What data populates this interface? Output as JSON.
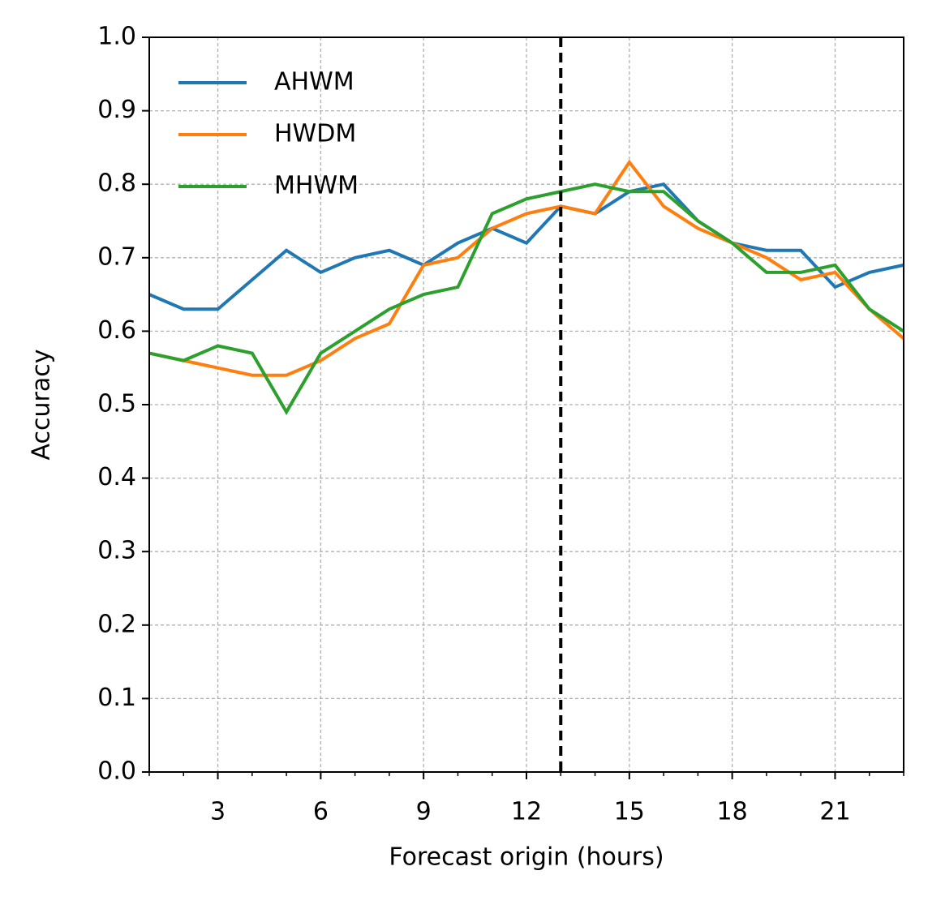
{
  "chart_data": {
    "type": "line",
    "x_label": "Forecast origin (hours)",
    "y_label": "Accuracy",
    "x": [
      1,
      2,
      3,
      4,
      5,
      6,
      7,
      8,
      9,
      10,
      11,
      12,
      13,
      14,
      15,
      16,
      17,
      18,
      19,
      20,
      21,
      22,
      23
    ],
    "series": [
      {
        "name": "AHWM",
        "color": "#1f77b4",
        "values": [
          0.65,
          0.63,
          0.63,
          0.67,
          0.71,
          0.68,
          0.7,
          0.71,
          0.69,
          0.72,
          0.74,
          0.72,
          0.77,
          0.76,
          0.79,
          0.8,
          0.75,
          0.72,
          0.71,
          0.71,
          0.66,
          0.68,
          0.69
        ]
      },
      {
        "name": "HWDM",
        "color": "#ff7f0e",
        "values": [
          0.57,
          0.56,
          0.55,
          0.54,
          0.54,
          0.56,
          0.59,
          0.61,
          0.69,
          0.7,
          0.74,
          0.76,
          0.77,
          0.76,
          0.83,
          0.77,
          0.74,
          0.72,
          0.7,
          0.67,
          0.68,
          0.63,
          0.59
        ]
      },
      {
        "name": "MHWM",
        "color": "#2ca02c",
        "values": [
          0.57,
          0.56,
          0.58,
          0.57,
          0.49,
          0.57,
          0.6,
          0.63,
          0.65,
          0.66,
          0.76,
          0.78,
          0.79,
          0.8,
          0.79,
          0.79,
          0.75,
          0.72,
          0.68,
          0.68,
          0.69,
          0.63,
          0.6
        ]
      }
    ],
    "xlim": [
      1,
      23
    ],
    "xticks": [
      3,
      6,
      9,
      12,
      15,
      18,
      21
    ],
    "xminorticks": [
      1,
      2,
      3,
      4,
      5,
      6,
      7,
      8,
      9,
      10,
      11,
      12,
      13,
      14,
      15,
      16,
      17,
      18,
      19,
      20,
      21,
      22,
      23
    ],
    "ylim": [
      0,
      1
    ],
    "yticks": [
      {
        "value": 0,
        "label": "0.0"
      },
      0.1,
      0.2,
      0.3,
      0.4,
      0.5,
      0.6,
      0.7,
      0.8,
      0.9,
      {
        "value": 1,
        "label": "1.0"
      }
    ],
    "vline": 13,
    "vline_color": "#000000",
    "grid": true,
    "legend": "upper left"
  }
}
